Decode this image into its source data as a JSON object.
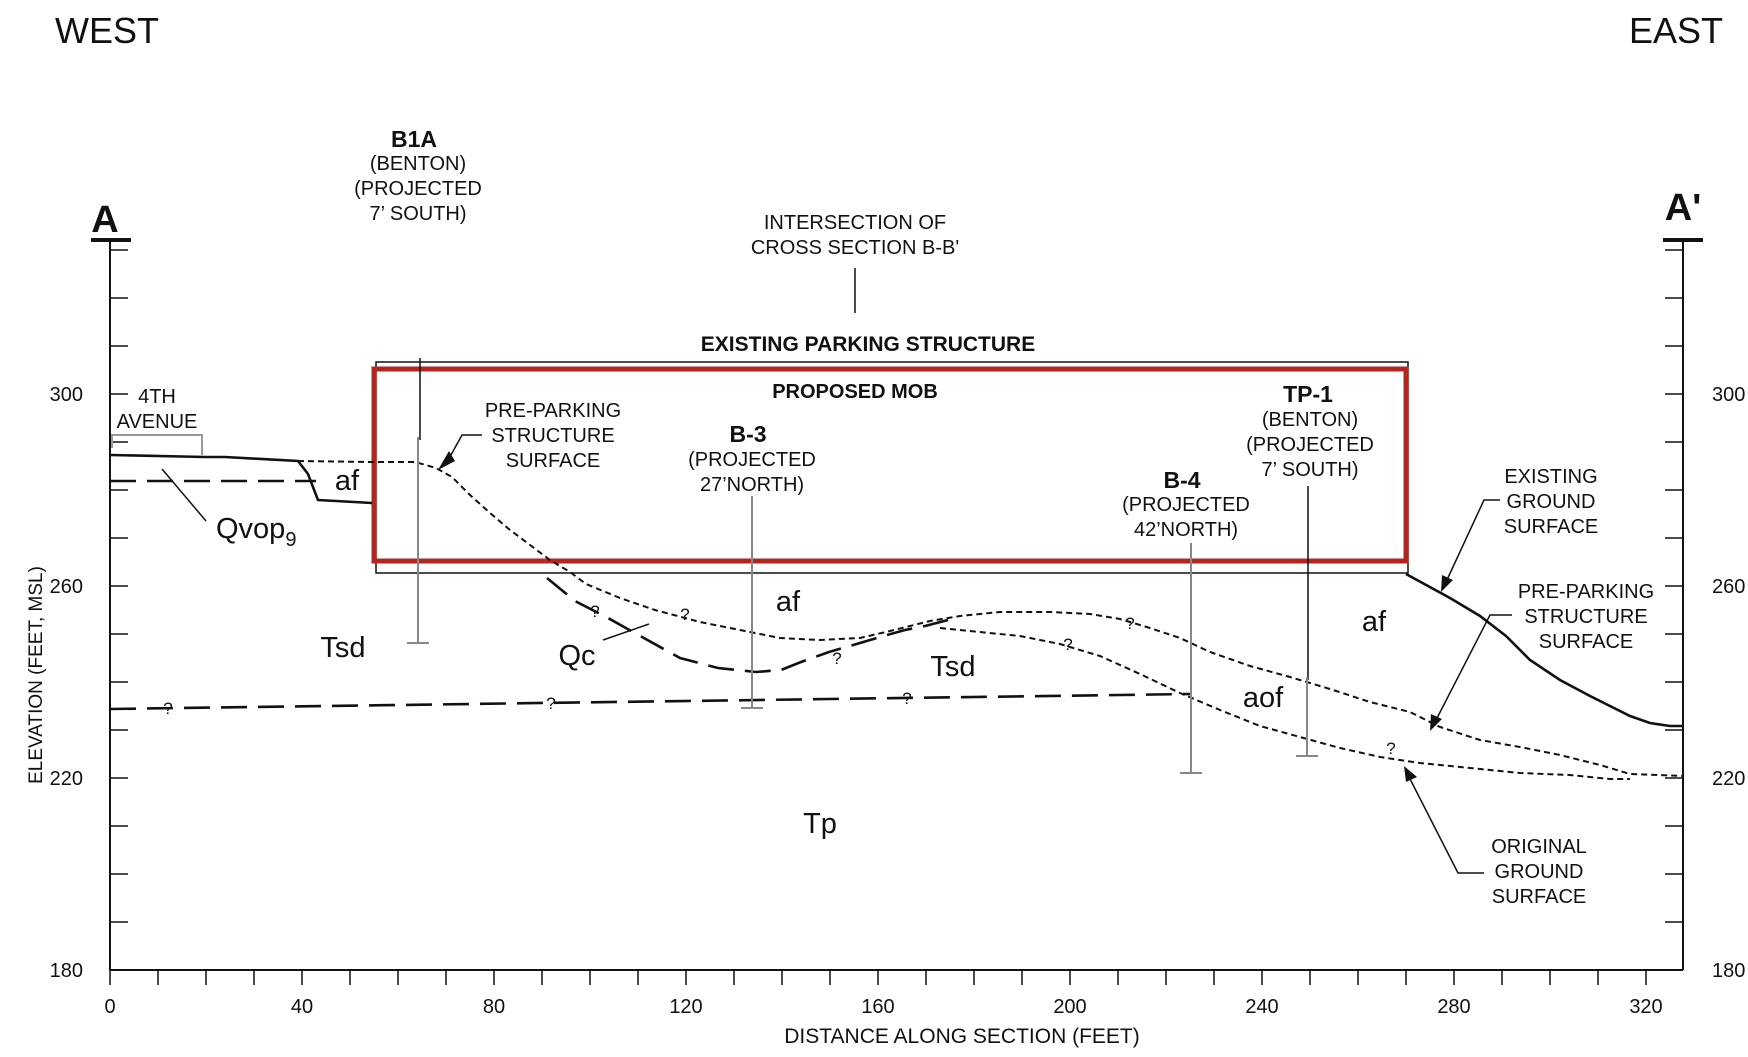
{
  "orientation": {
    "west": "WEST",
    "east": "EAST"
  },
  "section_marks": {
    "start": "A",
    "end": "A'"
  },
  "axes": {
    "xlabel": "DISTANCE ALONG SECTION (FEET)",
    "ylabel": "ELEVATION (FEET, MSL)",
    "x_ticks": [
      "0",
      "40",
      "80",
      "120",
      "160",
      "200",
      "240",
      "280",
      "320"
    ],
    "y_ticks_left": [
      "300",
      "260",
      "220",
      "180"
    ],
    "y_ticks_right": [
      "300",
      "260",
      "220",
      "180"
    ]
  },
  "structures": {
    "existing_parking": "EXISTING PARKING STRUCTURE",
    "proposed_mob": "PROPOSED MOB",
    "intersection": [
      "INTERSECTION OF",
      "CROSS SECTION B-B'"
    ],
    "street": [
      "4TH",
      "AVENUE"
    ]
  },
  "borings": {
    "b1a": {
      "id": "B1A",
      "lines": [
        "(BENTON)",
        "(PROJECTED",
        "7’ SOUTH)"
      ]
    },
    "b3": {
      "id": "B-3",
      "lines": [
        "(PROJECTED",
        "27’NORTH)"
      ]
    },
    "b4": {
      "id": "B-4",
      "lines": [
        "(PROJECTED",
        "42’NORTH)"
      ]
    },
    "tp1": {
      "id": "TP-1",
      "lines": [
        "(BENTON)",
        "(PROJECTED",
        "7’ SOUTH)"
      ]
    }
  },
  "surface_notes": {
    "pre_parking_left": [
      "PRE-PARKING",
      "STRUCTURE",
      "SURFACE"
    ],
    "existing_ground": [
      "EXISTING",
      "GROUND",
      "SURFACE"
    ],
    "pre_parking_right": [
      "PRE-PARKING",
      "STRUCTURE",
      "SURFACE"
    ],
    "original_ground": [
      "ORIGINAL",
      "GROUND",
      "SURFACE"
    ]
  },
  "units": {
    "af_left": "af",
    "qvop": "Qvop",
    "qvop_sub": "9",
    "tsd_left": "Tsd",
    "qc": "Qc",
    "af_mid": "af",
    "tsd_mid": "Tsd",
    "af_right": "af",
    "aof": "aof",
    "tp": "Tp"
  },
  "uncertain_mark": "?",
  "colors": {
    "proposed_mob": "#b3261e",
    "street": "#999999",
    "boring": "#888888",
    "line": "#111111"
  }
}
